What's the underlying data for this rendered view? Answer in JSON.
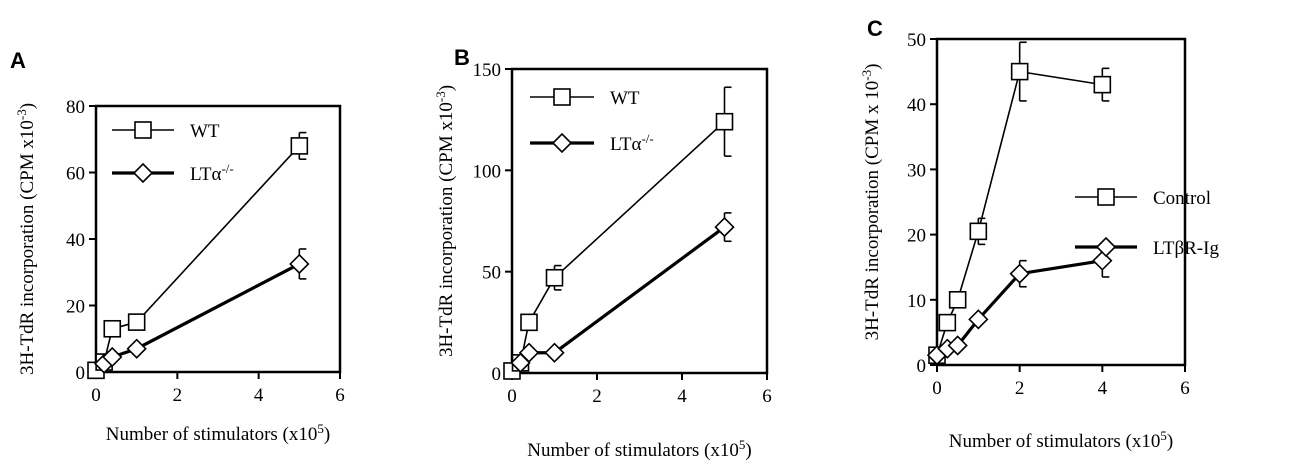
{
  "chart_data": [
    {
      "type": "line",
      "panel": "A",
      "xlabel": "Number of stimulators (x10",
      "xlabel_sup": "5",
      "xlabel_end": ")",
      "ylabel": "3H-TdR incorporation (CPM x10",
      "ylabel_sup": "-3",
      "ylabel_end": ")",
      "xlim": [
        0,
        6
      ],
      "ylim": [
        0,
        80
      ],
      "xticks": [
        0,
        2,
        4,
        6
      ],
      "yticks": [
        0,
        20,
        40,
        60,
        80
      ],
      "legend": "top-left",
      "series": [
        {
          "name": "WT",
          "name_sup": "",
          "marker": "square",
          "bold": false,
          "x": [
            0,
            0.2,
            0.4,
            1,
            5
          ],
          "y": [
            0.5,
            3,
            13,
            15,
            68
          ],
          "err": [
            0,
            0,
            0,
            0,
            4
          ]
        },
        {
          "name": "LTα",
          "name_sup": "-/-",
          "marker": "diamond",
          "bold": true,
          "x": [
            0.2,
            0.4,
            1,
            5
          ],
          "y": [
            2.5,
            4.5,
            7,
            32.5
          ],
          "err": [
            0,
            0,
            0,
            4.5
          ]
        }
      ]
    },
    {
      "type": "line",
      "panel": "B",
      "xlabel": "Number of stimulators (x10",
      "xlabel_sup": "5",
      "xlabel_end": ")",
      "ylabel": "3H-TdR incorporation (CPM x10",
      "ylabel_sup": "-3",
      "ylabel_end": ")",
      "xlim": [
        0,
        6
      ],
      "ylim": [
        0,
        150
      ],
      "xticks": [
        0,
        2,
        4,
        6
      ],
      "yticks": [
        0,
        50,
        100,
        150
      ],
      "legend": "top-left",
      "series": [
        {
          "name": "WT",
          "name_sup": "",
          "marker": "square",
          "bold": false,
          "x": [
            0,
            0.2,
            0.4,
            1,
            5
          ],
          "y": [
            1,
            5,
            25,
            47,
            124
          ],
          "err": [
            0,
            0,
            0,
            6,
            17
          ]
        },
        {
          "name": "LTα",
          "name_sup": "-/-",
          "marker": "diamond",
          "bold": true,
          "x": [
            0.2,
            0.4,
            1,
            5
          ],
          "y": [
            5,
            10,
            10,
            72
          ],
          "err": [
            0,
            0,
            0,
            7
          ]
        }
      ]
    },
    {
      "type": "line",
      "panel": "C",
      "xlabel": "Number of stimulators (x10",
      "xlabel_sup": "5",
      "xlabel_end": ")",
      "ylabel": "3H-TdR incorporation (CPM x 10",
      "ylabel_sup": "-3",
      "ylabel_end": ")",
      "xlim": [
        0,
        6
      ],
      "ylim": [
        0,
        50
      ],
      "xticks": [
        0,
        2,
        4,
        6
      ],
      "yticks": [
        0,
        10,
        20,
        30,
        40,
        50
      ],
      "legend": "right-middle",
      "series": [
        {
          "name": "Control",
          "name_sup": "",
          "marker": "square",
          "bold": false,
          "x": [
            0,
            0.25,
            0.5,
            1,
            2,
            4
          ],
          "y": [
            1.5,
            6.5,
            10,
            20.5,
            45,
            43
          ],
          "err": [
            0,
            0,
            0,
            2,
            4.5,
            2.5
          ]
        },
        {
          "name": "LTβR-Ig",
          "name_sup": "",
          "marker": "diamond",
          "bold": true,
          "x": [
            0,
            0.25,
            0.5,
            1,
            2,
            4
          ],
          "y": [
            1.5,
            2.5,
            3,
            7,
            14,
            16
          ],
          "err": [
            0,
            0,
            0,
            0,
            2,
            2.5
          ]
        }
      ]
    }
  ]
}
